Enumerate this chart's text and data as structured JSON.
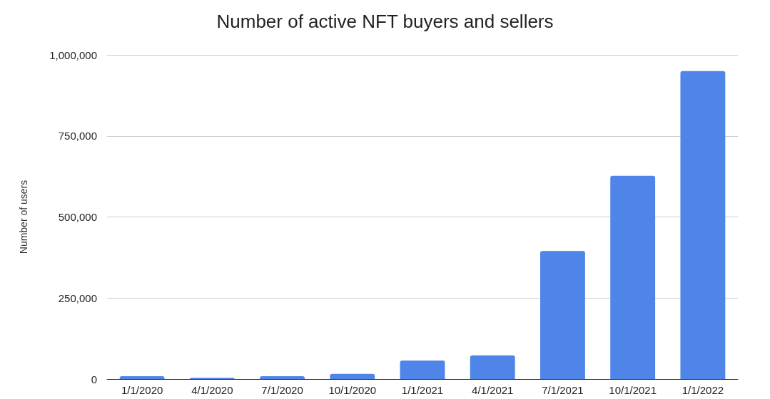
{
  "chart_data": {
    "type": "bar",
    "title": "Number of active NFT buyers and sellers",
    "ylabel": "Number of users",
    "categories": [
      "1/1/2020",
      "4/1/2020",
      "7/1/2020",
      "10/1/2020",
      "1/1/2021",
      "4/1/2021",
      "7/1/2021",
      "10/1/2021",
      "1/1/2022"
    ],
    "values": [
      9000,
      4000,
      9000,
      16000,
      57000,
      73000,
      395000,
      627000,
      950000
    ],
    "color": "#4f84e8",
    "ylim": [
      0,
      1000000
    ],
    "yticks": [
      0,
      {
        "value": 250000,
        "label": "250,000"
      },
      {
        "value": 500000,
        "label": "500,000"
      },
      {
        "value": 750000,
        "label": "750,000"
      },
      {
        "value": 1000000,
        "label": "1,000,000"
      }
    ],
    "grid": "y"
  }
}
